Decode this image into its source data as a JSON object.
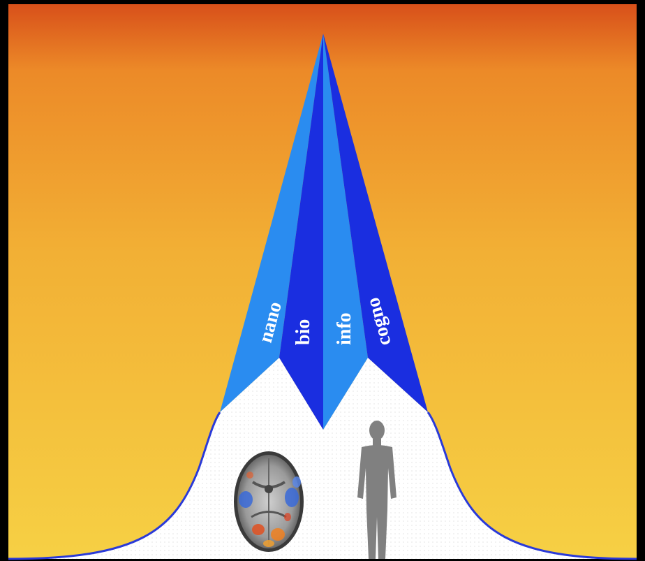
{
  "diagram": {
    "fields": [
      {
        "label": "nano",
        "color": "#2a8cf0"
      },
      {
        "label": "bio",
        "color": "#1a2ee0"
      },
      {
        "label": "info",
        "color": "#2a8cf0"
      },
      {
        "label": "cogno",
        "color": "#1a2ee0"
      }
    ],
    "colors": {
      "frame": "#000000",
      "sky_top": "#e0601a",
      "sky_mid": "#f0a030",
      "sky_bottom": "#f7d040",
      "ground": "#ffffff",
      "curve_outline": "#2a3ad8",
      "human_figure": "#808080"
    },
    "illustrations": [
      "brain-scan-image",
      "human-silhouette-icon"
    ]
  }
}
